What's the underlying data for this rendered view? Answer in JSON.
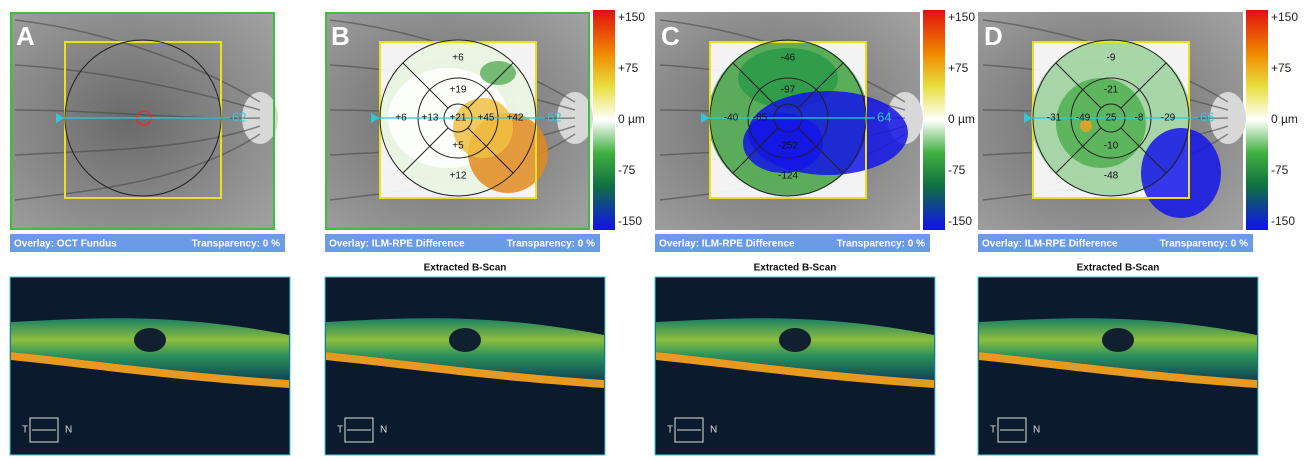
{
  "panels": [
    {
      "letter": "A",
      "overlay": "Overlay: OCT Fundus",
      "transparency": "Transparency: 0 %",
      "scan_number": "62",
      "sectors": [
        null,
        null,
        null,
        null,
        null,
        null,
        null,
        null,
        null
      ],
      "colorbar": null,
      "bscan_title": null,
      "t_label": "T",
      "n_label": "N"
    },
    {
      "letter": "B",
      "overlay": "Overlay: ILM-RPE Difference",
      "transparency": "Transparency: 0 %",
      "scan_number": "62",
      "sectors": [
        "+6",
        "+19",
        "+6",
        "+13",
        "+21",
        "+45",
        "+42",
        "+5",
        "+12"
      ],
      "colorbar": [
        "+150",
        "+75",
        "0 µm",
        "-75",
        "-150"
      ],
      "bscan_title": "Extracted B-Scan",
      "t_label": "T",
      "n_label": "N"
    },
    {
      "letter": "C",
      "overlay": "Overlay: ILM-RPE Difference",
      "transparency": "Transparency: 0 %",
      "scan_number": "64",
      "sectors": [
        "-46",
        "-97",
        "-40",
        "-85",
        null,
        null,
        null,
        "-252",
        "-124"
      ],
      "colorbar": [
        "+150",
        "+75",
        "0 µm",
        "-75",
        "-150"
      ],
      "bscan_title": "Extracted B-Scan",
      "t_label": "T",
      "n_label": "N"
    },
    {
      "letter": "D",
      "overlay": "Overlay: ILM-RPE Difference",
      "transparency": "Transparency: 0 %",
      "scan_number": "66",
      "sectors": [
        "-9",
        "-21",
        "-31",
        "-49",
        "25",
        "-8",
        "-29",
        "-10",
        "-48"
      ],
      "colorbar": [
        "+150",
        "+75",
        "0 µm",
        "-75",
        "-150"
      ],
      "bscan_title": "Extracted B-Scan",
      "t_label": "T",
      "n_label": "N"
    }
  ]
}
